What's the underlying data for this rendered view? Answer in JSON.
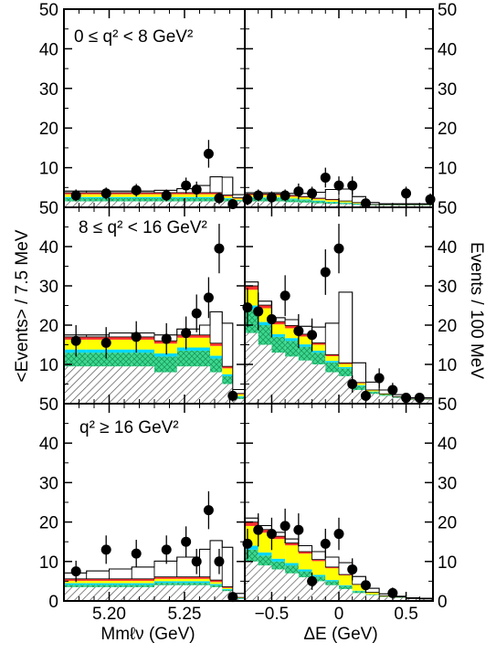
{
  "figure": {
    "left_ylabel": "<Events> / 7.5 MeV",
    "right_ylabel": "Events / 100 MeV",
    "row_labels": [
      "0 ≤ q² < 8 GeV²",
      "8 ≤ q² < 16 GeV²",
      "q² ≥ 16 GeV²"
    ],
    "left_xlabel": "Mmℓν (GeV)",
    "right_xlabel": "ΔE (GeV)",
    "y_ticks": [
      "0",
      "10",
      "20",
      "30",
      "40",
      "50"
    ],
    "left_x_ticks": [
      "5.20",
      "5.25"
    ],
    "right_x_ticks": [
      "−0.5",
      "0",
      "0.5"
    ],
    "colors": {
      "yellow": "#ffff00",
      "cyan": "#00d8ff",
      "green": "#3cd890",
      "red": "#ff3030",
      "hatch": "#555555"
    }
  },
  "chart_data": [
    {
      "type": "bar",
      "panel": "q2-low-mbc",
      "xlabel": "Mmℓν (GeV)",
      "xlim": [
        5.17,
        5.29
      ],
      "ylim": [
        0,
        50
      ],
      "stack_edges": [
        5.17,
        5.185,
        5.2,
        5.215,
        5.23,
        5.245,
        5.26,
        5.267,
        5.275,
        5.282,
        5.29
      ],
      "stacks": [
        {
          "component": "hatched",
          "values": [
            1.5,
            1.5,
            1.5,
            1.5,
            1.5,
            1.5,
            1.5,
            1.5,
            1.5,
            1.5
          ]
        },
        {
          "component": "green",
          "values": [
            0.8,
            0.8,
            0.8,
            0.8,
            0.8,
            0.8,
            0.8,
            0.8,
            0.6,
            0.3
          ]
        },
        {
          "component": "cyan",
          "values": [
            0.3,
            0.3,
            0.3,
            0.3,
            0.3,
            0.3,
            0.3,
            0.3,
            0.2,
            0.1
          ]
        },
        {
          "component": "yellow",
          "values": [
            0.7,
            0.7,
            0.7,
            0.7,
            0.7,
            0.7,
            0.7,
            0.7,
            0.5,
            0.3
          ]
        },
        {
          "component": "red",
          "values": [
            0.4,
            0.4,
            0.4,
            0.4,
            0.4,
            0.4,
            0.4,
            0.4,
            0.3,
            0.2
          ]
        },
        {
          "component": "open",
          "values": [
            0.4,
            0.4,
            0.4,
            0.4,
            0.6,
            1.0,
            1.8,
            4.0,
            4.5,
            0.8
          ]
        }
      ],
      "points": [
        {
          "x": 5.178,
          "y": 3,
          "err": 1.5
        },
        {
          "x": 5.198,
          "y": 3.5,
          "err": 1.5
        },
        {
          "x": 5.218,
          "y": 4.3,
          "err": 1.6
        },
        {
          "x": 5.238,
          "y": 3,
          "err": 1.5
        },
        {
          "x": 5.251,
          "y": 5.5,
          "err": 2
        },
        {
          "x": 5.258,
          "y": 4.5,
          "err": 2
        },
        {
          "x": 5.266,
          "y": 13.5,
          "err": 3.5
        },
        {
          "x": 5.273,
          "y": 2.3,
          "err": 1.5
        },
        {
          "x": 5.282,
          "y": 0.8,
          "err": 1
        }
      ]
    },
    {
      "type": "bar",
      "panel": "q2-low-de",
      "xlabel": "ΔE (GeV)",
      "xlim": [
        -0.7,
        0.7
      ],
      "ylim": [
        0,
        50
      ],
      "stack_edges": [
        -0.7,
        -0.6,
        -0.5,
        -0.4,
        -0.3,
        -0.2,
        -0.1,
        0,
        0.1,
        0.2,
        0.3,
        0.4,
        0.5,
        0.6,
        0.7
      ],
      "stacks": [
        {
          "component": "hatched",
          "values": [
            1.5,
            1.5,
            1.5,
            1.3,
            1.2,
            1.0,
            0.9,
            0.8,
            0.6,
            0.5,
            0.5,
            0.5,
            0.5,
            0.5
          ]
        },
        {
          "component": "green",
          "values": [
            0.8,
            0.8,
            0.8,
            0.7,
            0.6,
            0.5,
            0.4,
            0.3,
            0.2,
            0.1,
            0.1,
            0.1,
            0.1,
            0.1
          ]
        },
        {
          "component": "cyan",
          "values": [
            0.2,
            0.2,
            0.2,
            0.2,
            0.2,
            0.2,
            0.1,
            0.1,
            0.1,
            0,
            0,
            0,
            0,
            0
          ]
        },
        {
          "component": "yellow",
          "values": [
            0.6,
            0.6,
            0.6,
            0.5,
            0.5,
            0.4,
            0.4,
            0.3,
            0.2,
            0.1,
            0.1,
            0.1,
            0.1,
            0.1
          ]
        },
        {
          "component": "red",
          "values": [
            0.3,
            0.3,
            0.3,
            0.3,
            0.2,
            0.2,
            0.2,
            0.1,
            0.1,
            0,
            0,
            0,
            0,
            0
          ]
        },
        {
          "component": "open",
          "values": [
            0.3,
            0.3,
            0.3,
            0.5,
            0.8,
            1.5,
            2.5,
            3.0,
            1.5,
            0.5,
            0.2,
            0.2,
            0.2,
            0.2
          ]
        }
      ],
      "points": [
        {
          "x": -0.68,
          "y": 2,
          "err": 1.5
        },
        {
          "x": -0.6,
          "y": 3,
          "err": 1.5
        },
        {
          "x": -0.5,
          "y": 2.5,
          "err": 1.5
        },
        {
          "x": -0.4,
          "y": 3,
          "err": 1.5
        },
        {
          "x": -0.3,
          "y": 4,
          "err": 2
        },
        {
          "x": -0.2,
          "y": 3.5,
          "err": 1.7
        },
        {
          "x": -0.1,
          "y": 7.5,
          "err": 2.5
        },
        {
          "x": 0,
          "y": 5.5,
          "err": 2.3
        },
        {
          "x": 0.1,
          "y": 5.5,
          "err": 2.3
        },
        {
          "x": 0.2,
          "y": 1,
          "err": 1
        },
        {
          "x": 0.5,
          "y": 3.5,
          "err": 1.7
        },
        {
          "x": 0.68,
          "y": 2,
          "err": 1.5
        }
      ]
    },
    {
      "type": "bar",
      "panel": "q2-mid-mbc",
      "xlabel": "Mmℓν (GeV)",
      "xlim": [
        5.17,
        5.29
      ],
      "ylim": [
        0,
        50
      ],
      "stack_edges": [
        5.17,
        5.185,
        5.2,
        5.215,
        5.23,
        5.245,
        5.26,
        5.267,
        5.275,
        5.282,
        5.29
      ],
      "stacks": [
        {
          "component": "hatched",
          "values": [
            9.5,
            9.5,
            9.5,
            9.5,
            8,
            9.5,
            9.5,
            8,
            5,
            1.2
          ]
        },
        {
          "component": "green",
          "values": [
            3.5,
            3.5,
            3.5,
            3.5,
            4,
            4,
            4,
            3.5,
            2,
            0.5
          ]
        },
        {
          "component": "cyan",
          "values": [
            0.8,
            0.8,
            0.8,
            0.8,
            0.8,
            0.8,
            0.8,
            0.7,
            0.5,
            0.2
          ]
        },
        {
          "component": "yellow",
          "values": [
            2.5,
            2.5,
            2.5,
            2.5,
            2.5,
            2.5,
            2.5,
            2.5,
            1.5,
            0.5
          ]
        },
        {
          "component": "red",
          "values": [
            0.7,
            0.7,
            0.7,
            0.7,
            0.7,
            0.7,
            0.7,
            0.7,
            0.5,
            0.2
          ]
        },
        {
          "component": "open",
          "values": [
            0.5,
            0.5,
            1,
            1,
            1.5,
            1.5,
            2.5,
            8,
            11,
            1
          ]
        }
      ],
      "points": [
        {
          "x": 5.178,
          "y": 16,
          "err": 4
        },
        {
          "x": 5.198,
          "y": 15.5,
          "err": 4
        },
        {
          "x": 5.218,
          "y": 17,
          "err": 4
        },
        {
          "x": 5.238,
          "y": 16.5,
          "err": 4
        },
        {
          "x": 5.251,
          "y": 18,
          "err": 4.2
        },
        {
          "x": 5.258,
          "y": 23,
          "err": 4.8
        },
        {
          "x": 5.266,
          "y": 27,
          "err": 5.2
        },
        {
          "x": 5.273,
          "y": 39.5,
          "err": 6.3
        },
        {
          "x": 5.282,
          "y": 2,
          "err": 1.5
        }
      ]
    },
    {
      "type": "bar",
      "panel": "q2-mid-de",
      "xlabel": "ΔE (GeV)",
      "xlim": [
        -0.7,
        0.7
      ],
      "ylim": [
        0,
        50
      ],
      "stack_edges": [
        -0.7,
        -0.6,
        -0.5,
        -0.4,
        -0.3,
        -0.2,
        -0.1,
        0,
        0.1,
        0.2,
        0.3,
        0.4,
        0.5,
        0.6,
        0.7
      ],
      "stacks": [
        {
          "component": "hatched",
          "values": [
            18,
            15,
            13,
            12,
            11,
            10,
            8,
            7,
            3.5,
            2.5,
            2,
            1.5,
            1,
            1
          ]
        },
        {
          "component": "green",
          "values": [
            6,
            5,
            4,
            4,
            3.5,
            3,
            2.5,
            2,
            1,
            0.5,
            0.3,
            0.2,
            0.1,
            0.1
          ]
        },
        {
          "component": "cyan",
          "values": [
            1,
            0.8,
            0.7,
            0.7,
            0.6,
            0.5,
            0.4,
            0.3,
            0.2,
            0.1,
            0,
            0,
            0,
            0
          ]
        },
        {
          "component": "yellow",
          "values": [
            4,
            3.5,
            2.5,
            2.5,
            2,
            1.5,
            1.2,
            0.8,
            0.5,
            0.3,
            0.2,
            0.1,
            0.1,
            0.1
          ]
        },
        {
          "component": "red",
          "values": [
            1,
            0.8,
            0.7,
            0.7,
            0.6,
            0.5,
            0.4,
            0.3,
            0.2,
            0.1,
            0,
            0,
            0,
            0
          ]
        },
        {
          "component": "open",
          "values": [
            1,
            1,
            1,
            1.5,
            2,
            4,
            8,
            18,
            5,
            2,
            1,
            0.5,
            0.3,
            0.3
          ]
        }
      ],
      "points": [
        {
          "x": -0.68,
          "y": 24.5,
          "err": 5
        },
        {
          "x": -0.6,
          "y": 23.5,
          "err": 4.8
        },
        {
          "x": -0.5,
          "y": 21.5,
          "err": 4.6
        },
        {
          "x": -0.4,
          "y": 27.5,
          "err": 5.2
        },
        {
          "x": -0.3,
          "y": 18.5,
          "err": 4.3
        },
        {
          "x": -0.2,
          "y": 17.5,
          "err": 4.2
        },
        {
          "x": -0.1,
          "y": 33.5,
          "err": 5.8
        },
        {
          "x": 0,
          "y": 39.5,
          "err": 6.3
        },
        {
          "x": 0.1,
          "y": 5,
          "err": 2.2
        },
        {
          "x": 0.2,
          "y": 2,
          "err": 1.5
        },
        {
          "x": 0.3,
          "y": 6.5,
          "err": 2.5
        },
        {
          "x": 0.4,
          "y": 3.5,
          "err": 1.8
        },
        {
          "x": 0.5,
          "y": 1.5,
          "err": 1.2
        },
        {
          "x": 0.6,
          "y": 1.5,
          "err": 1.2
        }
      ]
    },
    {
      "type": "bar",
      "panel": "q2-high-mbc",
      "xlabel": "Mmℓν (GeV)",
      "xlim": [
        5.17,
        5.29
      ],
      "ylim": [
        0,
        50
      ],
      "stack_edges": [
        5.17,
        5.185,
        5.2,
        5.215,
        5.23,
        5.245,
        5.26,
        5.267,
        5.275,
        5.282,
        5.29
      ],
      "stacks": [
        {
          "component": "hatched",
          "values": [
            3.5,
            3.5,
            3.5,
            3.5,
            4,
            4,
            4,
            3.5,
            2.5,
            0.5
          ]
        },
        {
          "component": "green",
          "values": [
            0.6,
            0.6,
            0.6,
            0.6,
            0.6,
            0.6,
            0.6,
            0.5,
            0.3,
            0.1
          ]
        },
        {
          "component": "cyan",
          "values": [
            0.4,
            0.4,
            0.4,
            0.4,
            0.4,
            0.4,
            0.4,
            0.3,
            0.2,
            0.1
          ]
        },
        {
          "component": "yellow",
          "values": [
            0.6,
            0.6,
            0.6,
            0.6,
            0.6,
            0.6,
            0.6,
            0.5,
            0.3,
            0.1
          ]
        },
        {
          "component": "red",
          "values": [
            0.5,
            0.5,
            0.5,
            0.5,
            0.5,
            0.5,
            0.5,
            0.5,
            0.3,
            0.1
          ]
        },
        {
          "component": "open",
          "values": [
            1.5,
            2,
            2.5,
            3,
            4,
            5,
            7,
            10,
            10,
            1
          ]
        }
      ],
      "points": [
        {
          "x": 5.178,
          "y": 7.5,
          "err": 2.7
        },
        {
          "x": 5.198,
          "y": 13,
          "err": 3.6
        },
        {
          "x": 5.218,
          "y": 12,
          "err": 3.5
        },
        {
          "x": 5.238,
          "y": 13,
          "err": 3.6
        },
        {
          "x": 5.251,
          "y": 15,
          "err": 3.9
        },
        {
          "x": 5.258,
          "y": 10,
          "err": 3.2
        },
        {
          "x": 5.266,
          "y": 23,
          "err": 4.8
        },
        {
          "x": 5.273,
          "y": 10,
          "err": 3.2
        },
        {
          "x": 5.282,
          "y": 1,
          "err": 1
        }
      ]
    },
    {
      "type": "bar",
      "panel": "q2-high-de",
      "xlabel": "ΔE (GeV)",
      "xlim": [
        -0.7,
        0.7
      ],
      "ylim": [
        0,
        50
      ],
      "stack_edges": [
        -0.7,
        -0.6,
        -0.5,
        -0.4,
        -0.3,
        -0.2,
        -0.1,
        0,
        0.1,
        0.2,
        0.3,
        0.4,
        0.5,
        0.6,
        0.7
      ],
      "stacks": [
        {
          "component": "hatched",
          "values": [
            10,
            9,
            8,
            7,
            6,
            5,
            4,
            3,
            2,
            1.5,
            1,
            0.8,
            0.6,
            0.5
          ]
        },
        {
          "component": "green",
          "values": [
            3,
            2.5,
            2,
            2,
            1.5,
            1.2,
            1,
            0.8,
            0.5,
            0.2,
            0.1,
            0.1,
            0,
            0
          ]
        },
        {
          "component": "cyan",
          "values": [
            1,
            0.8,
            0.7,
            0.6,
            0.5,
            0.4,
            0.3,
            0.2,
            0.1,
            0,
            0,
            0,
            0,
            0
          ]
        },
        {
          "component": "yellow",
          "values": [
            5,
            5,
            5,
            4.5,
            4,
            3.5,
            3,
            2.5,
            1.5,
            0.5,
            0.2,
            0.1,
            0,
            0
          ]
        },
        {
          "component": "red",
          "values": [
            1,
            0.8,
            0.7,
            0.6,
            0.5,
            0.4,
            0.3,
            0.2,
            0.1,
            0,
            0,
            0,
            0,
            0
          ]
        },
        {
          "component": "open",
          "values": [
            1,
            1,
            1,
            1,
            1.5,
            2,
            2.5,
            3,
            2,
            1,
            0.5,
            0.2,
            0.2,
            0.2
          ]
        }
      ],
      "points": [
        {
          "x": -0.68,
          "y": 14.5,
          "err": 3.8
        },
        {
          "x": -0.6,
          "y": 18,
          "err": 4.2
        },
        {
          "x": -0.5,
          "y": 17,
          "err": 4.1
        },
        {
          "x": -0.4,
          "y": 19,
          "err": 4.4
        },
        {
          "x": -0.3,
          "y": 18,
          "err": 4.2
        },
        {
          "x": -0.2,
          "y": 5,
          "err": 2.2
        },
        {
          "x": -0.1,
          "y": 14.5,
          "err": 3.8
        },
        {
          "x": 0,
          "y": 17,
          "err": 4.1
        },
        {
          "x": 0.1,
          "y": 8,
          "err": 2.8
        },
        {
          "x": 0.2,
          "y": 4,
          "err": 2
        },
        {
          "x": 0.4,
          "y": 2,
          "err": 1.4
        }
      ]
    }
  ]
}
